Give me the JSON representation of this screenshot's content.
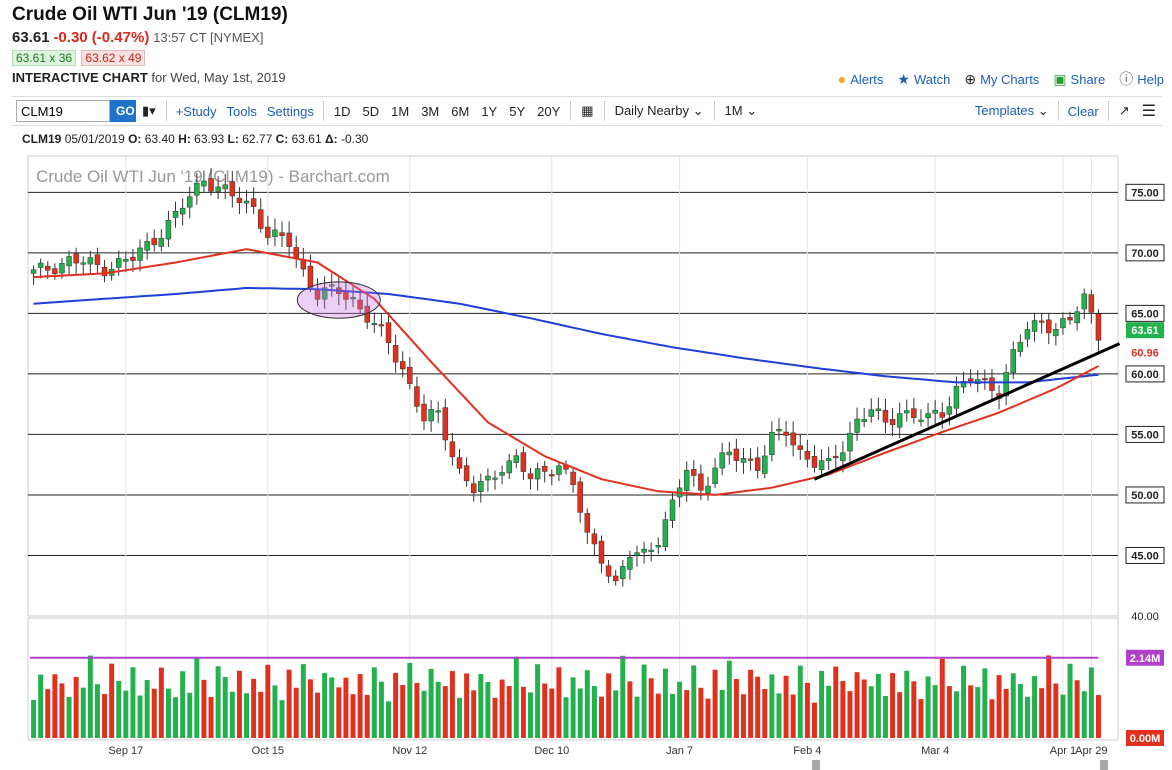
{
  "header": {
    "title": "Crude Oil WTI Jun '19 (CLM19)",
    "last": "63.61",
    "change": "-0.30 (-0.47%)",
    "time": "13:57 CT [NYMEX]",
    "bid": "63.61 x 36",
    "ask": "63.62 x 49",
    "chart_label": "INTERACTIVE CHART",
    "chart_date": "for Wed, May 1st, 2019"
  },
  "actions": {
    "alerts": "Alerts",
    "watch": "Watch",
    "my_charts": "My Charts",
    "share": "Share",
    "help": "Help"
  },
  "toolbar": {
    "symbol_value": "CLM19",
    "go": "GO",
    "study": "+Study",
    "tools": "Tools",
    "settings": "Settings",
    "periods": [
      "1D",
      "5D",
      "1M",
      "3M",
      "6M",
      "1Y",
      "5Y",
      "20Y"
    ],
    "aggregation": "Daily Nearby",
    "interval": "1M",
    "templates": "Templates",
    "clear": "Clear"
  },
  "ohlc": {
    "symbol": "CLM19",
    "date": "05/01/2019",
    "o_label": "O:",
    "o": "63.40",
    "h_label": "H:",
    "h": "63.93",
    "l_label": "L:",
    "l": "62.77",
    "c_label": "C:",
    "c": "63.61",
    "d_label": "Δ:",
    "d": "-0.30"
  },
  "colors": {
    "up": "#22b14c",
    "down": "#e0301e",
    "ma_fast": "#e0301e",
    "ma_slow": "#1f3fd6",
    "volume_avg": "#b040c8",
    "trendline": "#000000",
    "accent": "#1f73c9"
  },
  "chart_data": {
    "type": "candlestick",
    "title": "Crude Oil WTI Jun '19 (CLM19) - Barchart.com",
    "ylim": [
      40,
      78
    ],
    "y_ticks": [
      "75.00",
      "70.00",
      "65.00",
      "60.00",
      "55.00",
      "50.00",
      "45.00",
      "40.00"
    ],
    "x_ticks": [
      "Sep 17",
      "Oct 15",
      "Nov 12",
      "Dec 10",
      "Jan 7",
      "Feb 4",
      "Mar 4",
      "Apr 1",
      "Apr 29"
    ],
    "n_bars": 151,
    "x_tick_index": [
      13,
      33,
      53,
      73,
      91,
      109,
      127,
      145,
      149
    ],
    "anchors": [
      [
        0,
        68.3
      ],
      [
        5,
        69.4
      ],
      [
        10,
        68.8
      ],
      [
        14,
        69.5
      ],
      [
        17,
        71.2
      ],
      [
        20,
        73.0
      ],
      [
        24,
        76.2
      ],
      [
        28,
        74.6
      ],
      [
        31,
        73.8
      ],
      [
        33,
        71.5
      ],
      [
        36,
        70.8
      ],
      [
        38,
        68.5
      ],
      [
        40,
        66.6
      ],
      [
        43,
        66.8
      ],
      [
        45,
        66.2
      ],
      [
        48,
        64.0
      ],
      [
        50,
        62.5
      ],
      [
        52,
        60.5
      ],
      [
        55,
        56.2
      ],
      [
        57,
        56.6
      ],
      [
        60,
        52.0
      ],
      [
        62,
        50.4
      ],
      [
        64,
        51.0
      ],
      [
        66,
        52.5
      ],
      [
        68,
        53.0
      ],
      [
        70,
        51.2
      ],
      [
        72,
        52.0
      ],
      [
        74,
        52.6
      ],
      [
        76,
        50.8
      ],
      [
        78,
        46.5
      ],
      [
        80,
        45.0
      ],
      [
        82,
        42.5
      ],
      [
        84,
        45.0
      ],
      [
        86,
        45.2
      ],
      [
        88,
        46.5
      ],
      [
        90,
        49.0
      ],
      [
        92,
        52.2
      ],
      [
        94,
        50.5
      ],
      [
        96,
        52.3
      ],
      [
        98,
        53.3
      ],
      [
        100,
        53.0
      ],
      [
        102,
        52.5
      ],
      [
        104,
        54.6
      ],
      [
        106,
        55.2
      ],
      [
        108,
        53.6
      ],
      [
        110,
        52.7
      ],
      [
        112,
        52.3
      ],
      [
        114,
        54.0
      ],
      [
        116,
        56.2
      ],
      [
        118,
        57.0
      ],
      [
        120,
        55.8
      ],
      [
        122,
        57.0
      ],
      [
        124,
        56.5
      ],
      [
        126,
        56.2
      ],
      [
        128,
        56.9
      ],
      [
        130,
        58.8
      ],
      [
        132,
        59.6
      ],
      [
        134,
        59.0
      ],
      [
        136,
        58.7
      ],
      [
        138,
        61.6
      ],
      [
        140,
        63.7
      ],
      [
        142,
        64.2
      ],
      [
        144,
        64.0
      ],
      [
        146,
        64.2
      ],
      [
        148,
        66.4
      ],
      [
        150,
        63.3
      ],
      [
        151,
        63.61
      ]
    ],
    "ma_fast": {
      "name": "",
      "last_label": "60.96",
      "anchors": [
        [
          0,
          68.0
        ],
        [
          10,
          68.3
        ],
        [
          20,
          69.2
        ],
        [
          30,
          70.3
        ],
        [
          40,
          69.2
        ],
        [
          48,
          66.2
        ],
        [
          56,
          61.0
        ],
        [
          64,
          56.0
        ],
        [
          72,
          53.2
        ],
        [
          80,
          51.3
        ],
        [
          88,
          50.3
        ],
        [
          96,
          50.0
        ],
        [
          104,
          50.6
        ],
        [
          112,
          51.7
        ],
        [
          120,
          53.5
        ],
        [
          128,
          55.2
        ],
        [
          136,
          56.8
        ],
        [
          144,
          58.8
        ],
        [
          151,
          60.96
        ]
      ]
    },
    "ma_slow": {
      "name": "",
      "last_label": "60.00",
      "anchors": [
        [
          0,
          65.8
        ],
        [
          10,
          66.2
        ],
        [
          20,
          66.6
        ],
        [
          30,
          67.1
        ],
        [
          40,
          67.0
        ],
        [
          50,
          66.6
        ],
        [
          60,
          65.8
        ],
        [
          70,
          64.6
        ],
        [
          80,
          63.3
        ],
        [
          90,
          62.2
        ],
        [
          100,
          61.3
        ],
        [
          110,
          60.5
        ],
        [
          120,
          59.8
        ],
        [
          130,
          59.3
        ],
        [
          140,
          59.3
        ],
        [
          151,
          60.0
        ]
      ]
    },
    "trendline": {
      "from": [
        110,
        51.3
      ],
      "to": [
        151,
        62.5
      ]
    },
    "highlight_ellipse": {
      "index_start": 38,
      "index_end": 48,
      "price_low": 64.6,
      "price_high": 67.6
    },
    "volume": {
      "labels": [
        "2.14M",
        "0.00M"
      ],
      "avg_level": 0.68,
      "bar_levels_cycle": [
        0.38,
        0.55,
        0.42,
        0.62,
        0.48,
        0.35,
        0.58,
        0.45,
        0.7,
        0.5,
        0.4,
        0.63,
        0.52,
        0.44,
        0.6
      ]
    }
  }
}
